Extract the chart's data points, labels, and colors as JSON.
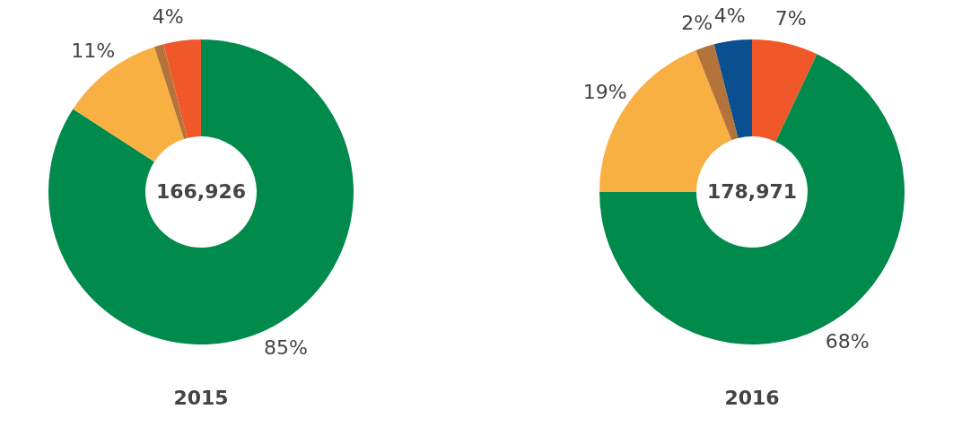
{
  "chart_data": [
    {
      "type": "donut",
      "title": "2015",
      "categories": [
        null,
        null,
        null,
        null
      ],
      "values": [
        85,
        11,
        1,
        4
      ],
      "colors": [
        "#008a4b",
        "#f9b042",
        "#b4733a",
        "#f0582a"
      ],
      "value_labels": [
        "85%",
        "11%",
        null,
        "4%"
      ],
      "annotations": [
        "166,926"
      ]
    },
    {
      "type": "donut",
      "title": "2016",
      "categories": [
        null,
        null,
        null,
        null,
        null
      ],
      "values": [
        7,
        68,
        19,
        2,
        4
      ],
      "colors": [
        "#f0582a",
        "#008a4b",
        "#f9b042",
        "#b4733a",
        "#0a4f8f"
      ],
      "value_labels": [
        "7%",
        "68%",
        "19%",
        "2%",
        "4%"
      ],
      "annotations": [
        "178,971"
      ]
    }
  ]
}
